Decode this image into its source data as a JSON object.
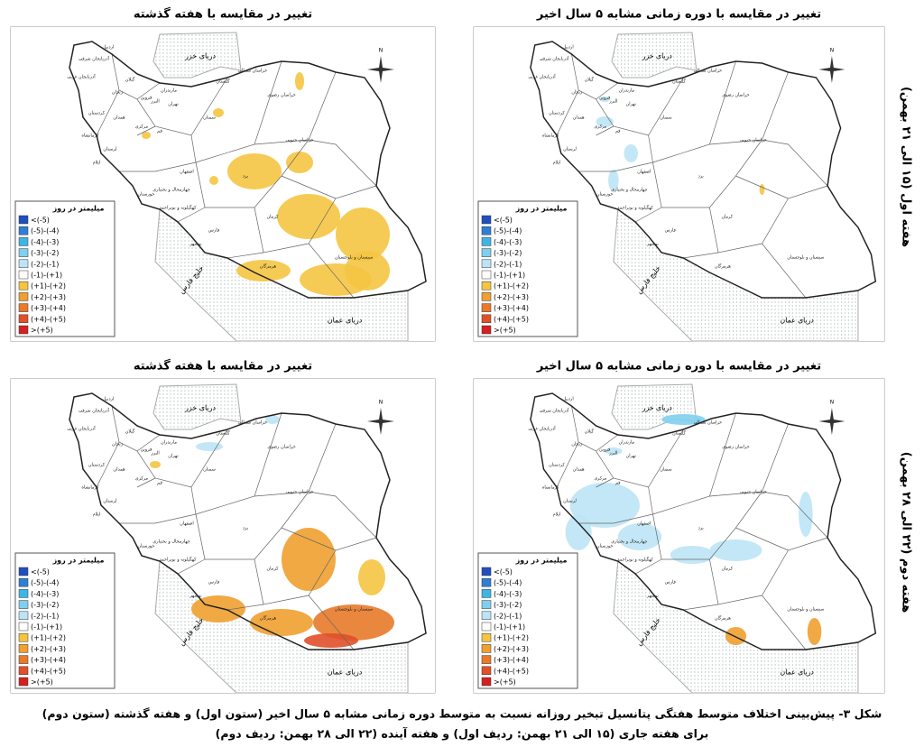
{
  "panels": [
    {
      "title": "تغییر در مقایسه با دوره زمانی مشابه ۵ سال اخیر"
    },
    {
      "title": "تغییر در مقایسه با هفته گذشته"
    },
    {
      "title": "تغییر در مقایسه با دوره زمانی مشابه ۵ سال اخیر"
    },
    {
      "title": "تغییر در مقایسه با هفته گذشته"
    }
  ],
  "row_labels": [
    "هفته اول (۱۵ الی ۲۱ بهمن)",
    "هفته دوم (۲۲ الی ۲۸ بهمن)"
  ],
  "legend": {
    "title": "میلیمتر در روز",
    "items": [
      {
        "label": "<(-5)",
        "color": "#1f4fbf"
      },
      {
        "label": "(-5)-(-4)",
        "color": "#2f7fd6"
      },
      {
        "label": "(-4)-(-3)",
        "color": "#3fb5e5"
      },
      {
        "label": "(-3)-(-2)",
        "color": "#7fd0f0"
      },
      {
        "label": "(-2)-(-1)",
        "color": "#bde4f5"
      },
      {
        "label": "(-1)-(+1)",
        "color": "#ffffff"
      },
      {
        "label": "(+1)-(+2)",
        "color": "#f5c542"
      },
      {
        "label": "(+2)-(+3)",
        "color": "#f0a030"
      },
      {
        "label": "(+3)-(+4)",
        "color": "#e87a2a"
      },
      {
        "label": "(+4)-(+5)",
        "color": "#e0502a"
      },
      {
        "label": ">(+5)",
        "color": "#d42020"
      }
    ]
  },
  "map_labels": {
    "north": "N",
    "caspian": "دریای خزر",
    "oman": "دریای عمان",
    "gulf": "خلیج فارس",
    "provinces": [
      "آذربایجان شرقی",
      "اردبیل",
      "آذربایجان غربی",
      "زنجان",
      "گیلان",
      "مازندران",
      "گلستان",
      "خراسان شمالی",
      "خراسان رضوی",
      "قزوین",
      "تهران",
      "البرز",
      "سمنان",
      "کردستان",
      "همدان",
      "مرکزی",
      "قم",
      "کرمانشاه",
      "لرستان",
      "ایلام",
      "اصفهان",
      "خوزستان",
      "چهارمحال و بختیاری",
      "کهگیلویه و بویراحمد",
      "یزد",
      "خراسان جنوبی",
      "کرمان",
      "فارس",
      "بوشهر",
      "هرمزگان",
      "سیستان و بلوچستان"
    ]
  },
  "caption": [
    "شکل ۳- پیش‌بینی اختلاف متوسط هفتگی پتانسیل تبخیر روزانه نسبت به متوسط دوره زمانی مشابه ۵ سال اخیر (ستون اول) و هفته گذشته (ستون دوم)",
    "برای هفته جاری (۱۵ الی ۲۱ بهمن: ردیف اول) و هفته آینده (۲۲ الی ۲۸ بهمن: ردیف دوم)"
  ]
}
